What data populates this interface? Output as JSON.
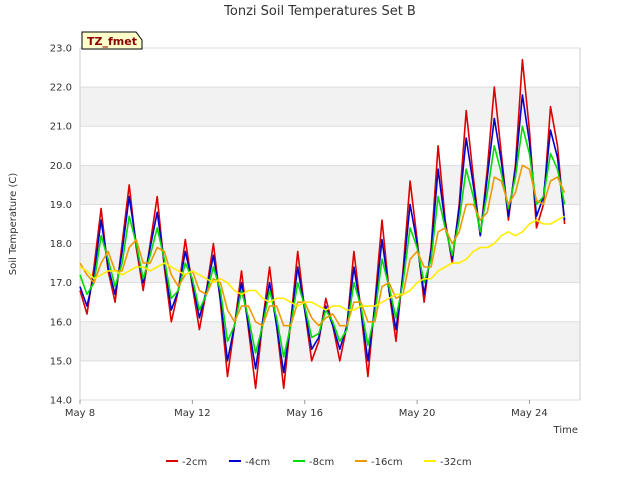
{
  "chart_data": {
    "type": "line",
    "title": "Tonzi Soil Temperatures Set B",
    "xlabel": "Time",
    "ylabel": "Soil Temperature (C)",
    "site_badge": "TZ_fmet",
    "ylim": [
      14.0,
      23.0
    ],
    "xlim_days": [
      8,
      25.8
    ],
    "y_ticks": [
      "14.0",
      "15.0",
      "16.0",
      "17.0",
      "18.0",
      "19.0",
      "20.0",
      "21.0",
      "22.0",
      "23.0"
    ],
    "x_ticks": [
      {
        "day": 8,
        "label": "May 8"
      },
      {
        "day": 12,
        "label": "May 12"
      },
      {
        "day": 16,
        "label": "May 16"
      },
      {
        "day": 20,
        "label": "May 20"
      },
      {
        "day": 24,
        "label": "May 24"
      }
    ],
    "grid": true,
    "legend_position": "bottom-center",
    "x_hours": [
      0,
      6,
      12,
      18,
      24,
      30,
      36,
      42,
      48,
      54,
      60,
      66,
      72,
      78,
      84,
      90,
      96,
      102,
      108,
      114,
      120,
      126,
      132,
      138,
      144,
      150,
      156,
      162,
      168,
      174,
      180,
      186,
      192,
      198,
      204,
      210,
      216,
      222,
      228,
      234,
      240,
      246,
      252,
      258,
      264,
      270,
      276,
      282,
      288,
      294,
      300,
      306,
      312,
      318,
      324,
      330,
      336,
      342,
      348,
      354,
      360,
      366,
      372,
      378,
      384,
      390,
      396,
      402,
      408,
      414,
      420,
      426
    ],
    "x_start_label": "May 8",
    "series": [
      {
        "name": "-2cm",
        "color": "#dd0000",
        "values": [
          16.8,
          16.2,
          17.4,
          18.9,
          17.3,
          16.5,
          18.0,
          19.5,
          17.9,
          16.8,
          18.0,
          19.2,
          17.4,
          16.0,
          16.8,
          18.1,
          16.9,
          15.8,
          16.8,
          18.0,
          16.5,
          14.6,
          15.9,
          17.3,
          15.8,
          14.3,
          16.0,
          17.4,
          15.9,
          14.3,
          16.0,
          17.8,
          16.3,
          15.0,
          15.5,
          16.6,
          15.9,
          15.0,
          15.9,
          17.8,
          16.3,
          14.6,
          16.5,
          18.6,
          16.8,
          15.5,
          17.3,
          19.6,
          18.1,
          16.5,
          17.9,
          20.5,
          18.6,
          17.5,
          19.0,
          21.4,
          19.7,
          18.2,
          19.9,
          22.0,
          20.3,
          18.6,
          20.0,
          22.7,
          20.9,
          18.4,
          19.0,
          21.5,
          20.5,
          18.5
        ]
      },
      {
        "name": "-4cm",
        "color": "#0000cc",
        "values": [
          16.9,
          16.4,
          17.2,
          18.6,
          17.4,
          16.7,
          17.8,
          19.2,
          18.0,
          17.0,
          17.9,
          18.8,
          17.5,
          16.3,
          16.8,
          17.8,
          17.0,
          16.1,
          16.8,
          17.7,
          16.6,
          15.0,
          15.9,
          17.0,
          15.9,
          14.8,
          16.0,
          17.0,
          15.9,
          14.7,
          16.0,
          17.4,
          16.3,
          15.3,
          15.6,
          16.4,
          15.9,
          15.3,
          15.9,
          17.4,
          16.3,
          15.0,
          16.4,
          18.1,
          16.8,
          15.8,
          17.2,
          19.0,
          18.0,
          16.7,
          17.8,
          19.9,
          18.5,
          17.6,
          18.9,
          20.7,
          19.5,
          18.2,
          19.7,
          21.2,
          20.1,
          18.7,
          19.9,
          21.8,
          20.6,
          18.7,
          19.2,
          20.9,
          20.2,
          18.6
        ]
      },
      {
        "name": "-8cm",
        "color": "#00dd00",
        "values": [
          17.2,
          16.7,
          17.0,
          18.2,
          17.6,
          16.9,
          17.5,
          18.7,
          18.0,
          17.1,
          17.7,
          18.4,
          17.6,
          16.6,
          16.8,
          17.5,
          17.1,
          16.3,
          16.7,
          17.4,
          16.8,
          15.5,
          15.9,
          16.8,
          16.1,
          15.2,
          15.9,
          16.8,
          16.1,
          15.1,
          15.9,
          17.0,
          16.4,
          15.6,
          15.7,
          16.3,
          16.0,
          15.5,
          15.8,
          17.0,
          16.4,
          15.4,
          16.2,
          17.6,
          16.9,
          16.1,
          17.0,
          18.4,
          17.9,
          17.0,
          17.6,
          19.2,
          18.4,
          17.7,
          18.6,
          19.9,
          19.2,
          18.3,
          19.3,
          20.5,
          19.8,
          18.9,
          19.7,
          21.0,
          20.3,
          19.0,
          19.2,
          20.3,
          19.9,
          19.0
        ]
      },
      {
        "name": "-16cm",
        "color": "#ee9900",
        "values": [
          17.5,
          17.2,
          17.0,
          17.5,
          17.8,
          17.3,
          17.3,
          17.9,
          18.1,
          17.5,
          17.5,
          17.9,
          17.8,
          17.2,
          16.9,
          17.2,
          17.3,
          16.8,
          16.7,
          17.1,
          17.0,
          16.3,
          16.0,
          16.4,
          16.4,
          16.0,
          15.9,
          16.4,
          16.4,
          15.9,
          15.9,
          16.5,
          16.5,
          16.1,
          15.9,
          16.1,
          16.2,
          15.9,
          15.9,
          16.5,
          16.5,
          16.0,
          16.0,
          16.9,
          17.0,
          16.6,
          16.7,
          17.6,
          17.8,
          17.4,
          17.4,
          18.3,
          18.4,
          18.0,
          18.3,
          19.0,
          19.0,
          18.6,
          18.8,
          19.7,
          19.6,
          19.0,
          19.3,
          20.0,
          19.9,
          19.1,
          19.0,
          19.6,
          19.7,
          19.3
        ]
      },
      {
        "name": "-32cm",
        "color": "#ffee00",
        "values": [
          17.4,
          17.3,
          17.1,
          17.2,
          17.3,
          17.3,
          17.2,
          17.3,
          17.4,
          17.4,
          17.3,
          17.4,
          17.5,
          17.4,
          17.3,
          17.2,
          17.3,
          17.2,
          17.1,
          17.0,
          17.1,
          17.0,
          16.8,
          16.7,
          16.8,
          16.8,
          16.6,
          16.5,
          16.6,
          16.6,
          16.5,
          16.4,
          16.5,
          16.5,
          16.4,
          16.3,
          16.4,
          16.4,
          16.3,
          16.3,
          16.4,
          16.4,
          16.4,
          16.5,
          16.6,
          16.7,
          16.7,
          16.8,
          17.0,
          17.1,
          17.1,
          17.3,
          17.4,
          17.5,
          17.5,
          17.6,
          17.8,
          17.9,
          17.9,
          18.0,
          18.2,
          18.3,
          18.2,
          18.3,
          18.5,
          18.6,
          18.5,
          18.5,
          18.6,
          18.7
        ]
      }
    ]
  }
}
